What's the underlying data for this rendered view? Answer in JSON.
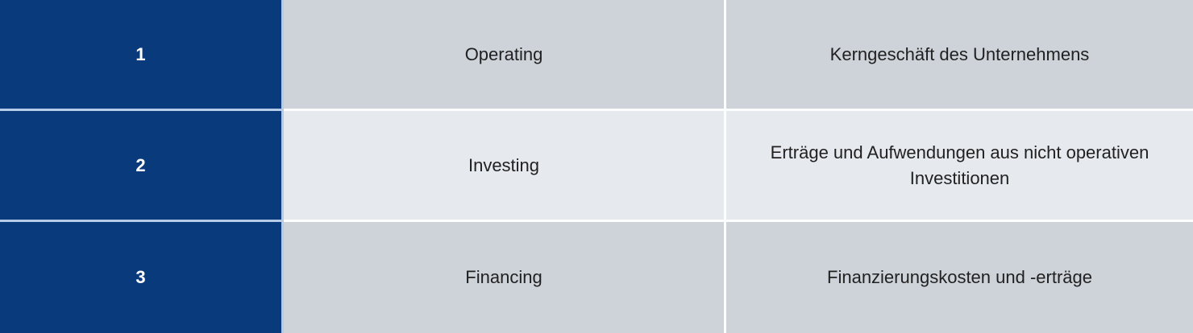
{
  "table": {
    "rows": [
      {
        "number": "1",
        "category": "Operating",
        "description": "Kerngeschäft des Unternehmens"
      },
      {
        "number": "2",
        "category": "Investing",
        "description": "Erträge und Aufwendungen aus nicht operativen Investitionen"
      },
      {
        "number": "3",
        "category": "Financing",
        "description": "Finanzierungskosten und -erträge"
      }
    ]
  },
  "colors": {
    "accent_blue": "#093a7c",
    "row_odd_bg": "#ced2d9",
    "row_even_bg": "#e6e9ed",
    "divider_on_blue": "#b5cbe7",
    "divider_on_gray": "#fcfdfe",
    "text_dark": "#212121",
    "text_white": "#ffffff"
  }
}
